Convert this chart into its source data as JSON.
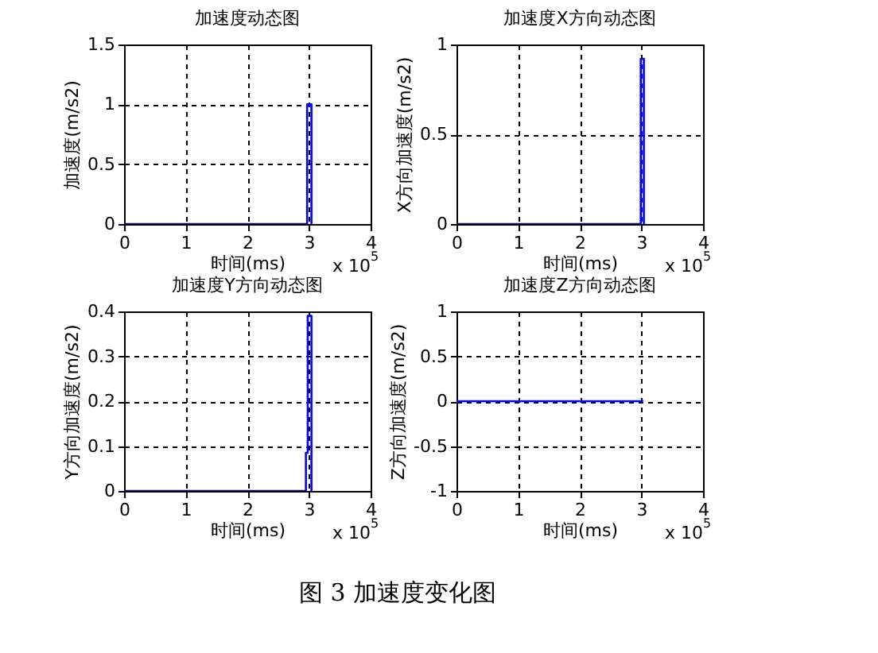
{
  "chart_data": [
    {
      "type": "line",
      "title": "加速度动态图",
      "xlabel": "时间(ms)",
      "ylabel": "加速度(m/s2)",
      "annotations": [
        "x 10$^{5}$"
      ],
      "xlim": [
        0,
        4
      ],
      "xticks": [
        0,
        1,
        2,
        3,
        4
      ],
      "ylim": [
        0,
        1.5
      ],
      "yticks": [
        0,
        0.5,
        1,
        1.5
      ],
      "grid": true,
      "series": [
        {
          "color": "#0000ff",
          "x": [
            0,
            2.97,
            2.97,
            3.04,
            3.04
          ],
          "values": [
            0,
            0,
            1,
            1,
            0
          ]
        }
      ]
    },
    {
      "type": "line",
      "title": "加速度X方向动态图",
      "xlabel": "时间(ms)",
      "ylabel": "X方向加速度(m/s2)",
      "annotations": [
        "x 10$^{5}$"
      ],
      "xlim": [
        0,
        4
      ],
      "xticks": [
        0,
        1,
        2,
        3,
        4
      ],
      "ylim": [
        0,
        1
      ],
      "yticks": [
        0,
        0.5,
        1
      ],
      "grid": true,
      "series": [
        {
          "color": "#0000ff",
          "x": [
            0,
            2.99,
            2.99,
            3.04,
            3.04
          ],
          "values": [
            0,
            0,
            0.92,
            0.92,
            0
          ]
        }
      ]
    },
    {
      "type": "line",
      "title": "加速度Y方向动态图",
      "xlabel": "时间(ms)",
      "ylabel": "Y方向加速度(m/s2)",
      "annotations": [
        "x 10$^{5}$"
      ],
      "xlim": [
        0,
        4
      ],
      "xticks": [
        0,
        1,
        2,
        3,
        4
      ],
      "ylim": [
        0,
        0.4
      ],
      "yticks": [
        0,
        0.1,
        0.2,
        0.3,
        0.4
      ],
      "grid": true,
      "series": [
        {
          "color": "#0000ff",
          "x": [
            0,
            2.95,
            2.95,
            2.98,
            2.98,
            3.04,
            3.04
          ],
          "values": [
            0,
            0,
            0.085,
            0.085,
            0.39,
            0.39,
            0
          ]
        }
      ]
    },
    {
      "type": "line",
      "title": "加速度Z方向动态图",
      "xlabel": "时间(ms)",
      "ylabel": "Z方向加速度(m/s2)",
      "annotations": [
        "x 10$^{5}$",
        "图 3  加速度变化图"
      ],
      "xlim": [
        0,
        4
      ],
      "xticks": [
        0,
        1,
        2,
        3,
        4
      ],
      "ylim": [
        -1,
        1
      ],
      "yticks": [
        -1,
        -0.5,
        0,
        0.5,
        1
      ],
      "grid": true,
      "series": [
        {
          "color": "#0000ff",
          "x": [
            0,
            3.03
          ],
          "values": [
            0,
            0
          ]
        }
      ]
    }
  ]
}
